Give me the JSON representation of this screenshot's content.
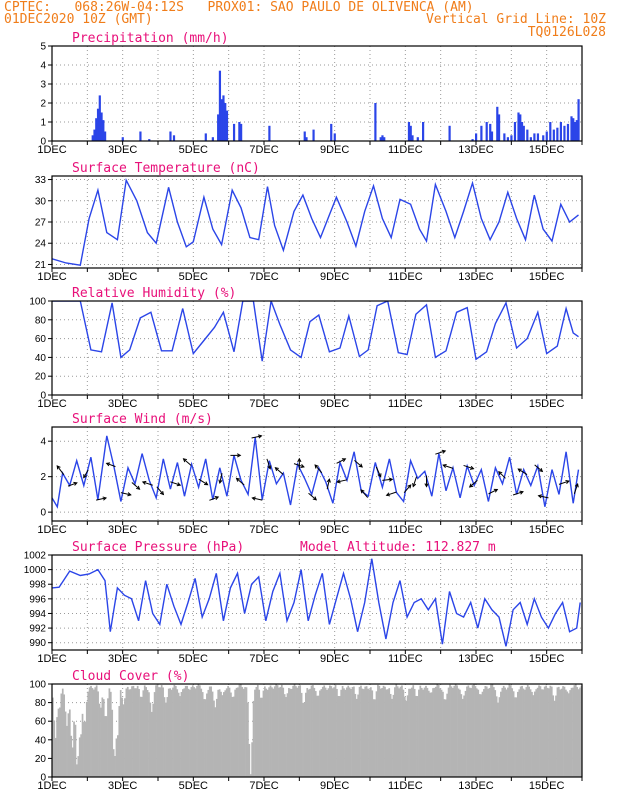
{
  "header": {
    "line1_left": "CPTEC:   068:26W-04:12S   PROX01: SAO PAULO DE OLIVENCA (AM)",
    "line2_left": "01DEC2020 10Z (GMT)",
    "line2_right": "Vertical Grid Line: 10Z",
    "line3_right": "TQ0126L028"
  },
  "colors": {
    "line": "#2b45e8",
    "bar": "#2b45e8",
    "cloud": "#b4b4b4",
    "title": "#e8107a",
    "header": "#f07d1a",
    "grid": "#9a9a9a"
  },
  "x_tick_labels": [
    "1DEC",
    "3DEC",
    "5DEC",
    "7DEC",
    "9DEC",
    "11DEC",
    "13DEC",
    "15DEC"
  ],
  "chart_data": [
    {
      "type": "bar",
      "title": "Precipitation (mm/h)",
      "ylim": [
        0,
        5
      ],
      "yticks": [
        "0",
        "1",
        "2",
        "3",
        "4",
        "5"
      ],
      "x_days": [
        2.15,
        2.2,
        2.25,
        2.3,
        2.35,
        2.4,
        2.45,
        2.5,
        3.0,
        3.5,
        3.75,
        4.35,
        4.45,
        5.35,
        5.55,
        5.7,
        5.75,
        5.8,
        5.85,
        5.9,
        5.95,
        6.15,
        6.3,
        6.35,
        7.15,
        8.15,
        8.2,
        8.4,
        8.9,
        9.0,
        10.15,
        10.3,
        10.35,
        10.4,
        11.1,
        11.15,
        11.2,
        11.35,
        11.5,
        12.25,
        12.9,
        13.0,
        13.15,
        13.3,
        13.4,
        13.45,
        13.6,
        13.65,
        13.8,
        13.9,
        14.0,
        14.1,
        14.2,
        14.25,
        14.3,
        14.35,
        14.45,
        14.55,
        14.65,
        14.75,
        14.9,
        15.0,
        15.1,
        15.2,
        15.3,
        15.4,
        15.5,
        15.6,
        15.7,
        15.75,
        15.8,
        15.85,
        15.9
      ],
      "values": [
        0.3,
        0.6,
        1.2,
        1.7,
        2.4,
        1.5,
        1.1,
        0.5,
        0.2,
        0.5,
        0.1,
        0.5,
        0.3,
        0.4,
        0.2,
        1.4,
        3.7,
        2.2,
        2.4,
        2.0,
        1.6,
        0.9,
        1.0,
        0.9,
        0.8,
        0.5,
        0.2,
        0.6,
        0.9,
        0.4,
        2.0,
        0.2,
        0.3,
        0.2,
        1.0,
        0.8,
        0.3,
        0.2,
        1.0,
        0.8,
        0.1,
        0.4,
        0.8,
        1.0,
        0.9,
        0.5,
        1.8,
        1.4,
        0.4,
        0.2,
        0.3,
        1.0,
        1.5,
        1.4,
        1.0,
        0.8,
        0.6,
        0.2,
        0.4,
        0.4,
        0.3,
        0.5,
        1.0,
        0.6,
        0.7,
        1.0,
        0.8,
        0.9,
        1.3,
        1.2,
        1.0,
        1.1,
        2.2
      ]
    },
    {
      "type": "line",
      "title": "Surface Temperature (nC)",
      "ylim": [
        20.5,
        33.5
      ],
      "yticks": [
        "21",
        "24",
        "27",
        "30",
        "33"
      ],
      "x_days": [
        1.0,
        1.4,
        1.8,
        2.05,
        2.3,
        2.55,
        2.85,
        3.1,
        3.4,
        3.7,
        3.95,
        4.3,
        4.55,
        4.8,
        5.0,
        5.3,
        5.55,
        5.8,
        6.1,
        6.35,
        6.6,
        6.85,
        7.1,
        7.3,
        7.55,
        7.85,
        8.1,
        8.35,
        8.6,
        8.85,
        9.05,
        9.35,
        9.6,
        9.85,
        10.1,
        10.35,
        10.6,
        10.85,
        11.15,
        11.4,
        11.6,
        11.85,
        12.15,
        12.4,
        12.65,
        12.9,
        13.15,
        13.4,
        13.65,
        13.9,
        14.15,
        14.4,
        14.65,
        14.9,
        15.15,
        15.4,
        15.65,
        15.9
      ],
      "values": [
        21.8,
        21.2,
        20.9,
        27.5,
        31.5,
        25.5,
        24.5,
        32.9,
        30.0,
        25.5,
        24.0,
        31.9,
        27.0,
        23.5,
        24.2,
        30.5,
        26.0,
        23.8,
        31.5,
        29.0,
        24.8,
        24.5,
        32.0,
        26.5,
        23.0,
        28.5,
        30.8,
        27.5,
        24.8,
        28.0,
        30.5,
        27.0,
        23.6,
        28.5,
        32.1,
        27.5,
        24.8,
        30.2,
        29.5,
        26.0,
        24.3,
        32.3,
        28.5,
        24.8,
        28.5,
        32.5,
        27.5,
        24.5,
        27.0,
        31.2,
        27.5,
        24.5,
        30.8,
        26.0,
        24.3,
        29.5,
        27.0,
        28.0
      ]
    },
    {
      "type": "line",
      "title": "Relative Humidity (%)",
      "ylim": [
        0,
        100
      ],
      "yticks": [
        "0",
        "20",
        "40",
        "60",
        "80",
        "100"
      ],
      "x_days": [
        1.0,
        1.4,
        1.8,
        2.1,
        2.4,
        2.7,
        2.95,
        3.2,
        3.5,
        3.8,
        4.1,
        4.4,
        4.7,
        5.0,
        5.3,
        5.6,
        5.85,
        6.15,
        6.4,
        6.7,
        6.95,
        7.2,
        7.45,
        7.75,
        8.05,
        8.3,
        8.55,
        8.85,
        9.15,
        9.4,
        9.7,
        9.95,
        10.2,
        10.5,
        10.8,
        11.05,
        11.3,
        11.6,
        11.85,
        12.15,
        12.45,
        12.75,
        13.0,
        13.3,
        13.55,
        13.85,
        14.15,
        14.45,
        14.75,
        15.0,
        15.3,
        15.55,
        15.75,
        15.9
      ],
      "values": [
        100,
        100,
        100,
        48,
        46,
        98,
        40,
        48,
        82,
        88,
        47,
        47,
        92,
        44,
        58,
        72,
        88,
        46,
        100,
        100,
        36,
        100,
        75,
        48,
        40,
        78,
        85,
        46,
        50,
        84,
        41,
        48,
        95,
        100,
        45,
        43,
        86,
        96,
        40,
        47,
        88,
        93,
        38,
        46,
        76,
        98,
        50,
        60,
        88,
        44,
        52,
        92,
        66,
        62
      ]
    },
    {
      "type": "line",
      "title": "Surface Wind (m/s)",
      "ylim": [
        -0.5,
        4.8
      ],
      "yticks": [
        "0",
        "2",
        "4"
      ],
      "x_days": [
        1.0,
        1.15,
        1.3,
        1.5,
        1.7,
        1.9,
        2.1,
        2.3,
        2.55,
        2.75,
        2.95,
        3.15,
        3.35,
        3.55,
        3.75,
        3.95,
        4.15,
        4.35,
        4.55,
        4.75,
        4.95,
        5.15,
        5.35,
        5.55,
        5.75,
        5.95,
        6.15,
        6.35,
        6.55,
        6.75,
        6.95,
        7.15,
        7.35,
        7.55,
        7.75,
        7.95,
        8.15,
        8.35,
        8.55,
        8.75,
        8.95,
        9.15,
        9.35,
        9.55,
        9.75,
        9.95,
        10.15,
        10.35,
        10.55,
        10.75,
        10.95,
        11.15,
        11.35,
        11.55,
        11.75,
        11.95,
        12.15,
        12.35,
        12.55,
        12.75,
        12.95,
        13.15,
        13.35,
        13.55,
        13.75,
        13.95,
        14.15,
        14.35,
        14.55,
        14.75,
        14.95,
        15.15,
        15.35,
        15.55,
        15.75,
        15.9
      ],
      "values": [
        0.8,
        0.3,
        2.2,
        1.5,
        2.9,
        1.5,
        3.1,
        0.7,
        4.3,
        2.6,
        0.6,
        2.5,
        1.6,
        3.3,
        1.8,
        0.8,
        3.0,
        1.3,
        2.8,
        0.9,
        2.7,
        1.4,
        3.0,
        0.7,
        2.5,
        0.9,
        3.2,
        1.8,
        1.0,
        4.2,
        0.7,
        2.9,
        1.6,
        2.2,
        0.4,
        2.7,
        1.9,
        1.0,
        2.5,
        1.7,
        0.5,
        2.8,
        1.8,
        3.4,
        1.2,
        0.9,
        2.8,
        1.4,
        3.0,
        1.1,
        0.6,
        2.9,
        1.9,
        2.3,
        0.9,
        3.3,
        1.2,
        2.5,
        0.8,
        2.6,
        1.5,
        2.4,
        0.6,
        2.5,
        1.6,
        3.1,
        1.0,
        2.4,
        1.5,
        2.6,
        0.3,
        2.4,
        1.0,
        3.4,
        0.5,
        2.4
      ],
      "arrows": [
        {
          "day": 1.3,
          "u": -0.6,
          "v": 0.8
        },
        {
          "day": 1.5,
          "u": 0.8,
          "v": 0.3
        },
        {
          "day": 2.0,
          "u": -0.4,
          "v": -0.7
        },
        {
          "day": 2.3,
          "u": 0.9,
          "v": 0.2
        },
        {
          "day": 2.75,
          "u": -0.8,
          "v": 0.3
        },
        {
          "day": 3.0,
          "u": 0.9,
          "v": -0.2
        },
        {
          "day": 3.3,
          "u": 0.7,
          "v": -0.6
        },
        {
          "day": 3.8,
          "u": -0.9,
          "v": 0.3
        },
        {
          "day": 4.0,
          "u": 0.6,
          "v": -0.7
        },
        {
          "day": 4.4,
          "u": 0.9,
          "v": -0.3
        },
        {
          "day": 4.9,
          "u": -0.7,
          "v": 0.6
        },
        {
          "day": 5.2,
          "u": 0.8,
          "v": -0.5
        },
        {
          "day": 5.5,
          "u": 0.8,
          "v": 0.3
        },
        {
          "day": 5.8,
          "u": -0.2,
          "v": -0.9
        },
        {
          "day": 6.1,
          "u": 0.9,
          "v": 0.0
        },
        {
          "day": 6.4,
          "u": -0.7,
          "v": 0.6
        },
        {
          "day": 6.7,
          "u": 0.9,
          "v": 0.2
        },
        {
          "day": 6.9,
          "u": -0.9,
          "v": 0.2
        },
        {
          "day": 7.1,
          "u": 0.3,
          "v": -0.9
        },
        {
          "day": 7.5,
          "u": -0.7,
          "v": 0.6
        },
        {
          "day": 7.9,
          "u": 0.9,
          "v": -0.3
        },
        {
          "day": 8.0,
          "u": 0.0,
          "v": 1.0
        },
        {
          "day": 8.3,
          "u": 0.7,
          "v": -0.6
        },
        {
          "day": 8.6,
          "u": -0.6,
          "v": 0.7
        },
        {
          "day": 8.8,
          "u": 0.2,
          "v": 0.9
        },
        {
          "day": 9.1,
          "u": 0.8,
          "v": 0.4
        },
        {
          "day": 9.3,
          "u": -0.9,
          "v": -0.2
        },
        {
          "day": 9.6,
          "u": 0.7,
          "v": -0.6
        },
        {
          "day": 9.9,
          "u": -0.6,
          "v": 0.7
        },
        {
          "day": 10.2,
          "u": 0.4,
          "v": -0.9
        },
        {
          "day": 10.4,
          "u": 0.9,
          "v": 0.1
        },
        {
          "day": 10.7,
          "u": -0.9,
          "v": -0.3
        },
        {
          "day": 11.0,
          "u": 0.6,
          "v": 0.7
        },
        {
          "day": 11.3,
          "u": -0.3,
          "v": -0.9
        },
        {
          "day": 11.6,
          "u": 0.0,
          "v": -1.0
        },
        {
          "day": 11.9,
          "u": 0.9,
          "v": 0.3
        },
        {
          "day": 12.3,
          "u": -0.9,
          "v": 0.3
        },
        {
          "day": 12.7,
          "u": 0.9,
          "v": -0.3
        },
        {
          "day": 13.0,
          "u": -0.7,
          "v": -0.6
        },
        {
          "day": 13.4,
          "u": 0.8,
          "v": 0.4
        },
        {
          "day": 13.8,
          "u": -0.6,
          "v": 0.6
        },
        {
          "day": 14.1,
          "u": 0.9,
          "v": 0.3
        },
        {
          "day": 14.4,
          "u": -0.8,
          "v": 0.5
        },
        {
          "day": 14.7,
          "u": 0.7,
          "v": -0.6
        },
        {
          "day": 15.0,
          "u": -0.9,
          "v": 0.2
        },
        {
          "day": 15.4,
          "u": 0.9,
          "v": 0.3
        },
        {
          "day": 15.8,
          "u": 0.3,
          "v": 0.9
        }
      ]
    },
    {
      "type": "line",
      "title": "Surface Pressure (hPa)",
      "annotation": "Model Altitude: 112.827 m",
      "ylim": [
        989,
        1002
      ],
      "yticks": [
        "990",
        "992",
        "994",
        "996",
        "998",
        "1000",
        "1002"
      ],
      "x_days": [
        1.0,
        1.2,
        1.5,
        1.8,
        2.05,
        2.3,
        2.5,
        2.65,
        2.85,
        3.05,
        3.25,
        3.45,
        3.65,
        3.85,
        4.05,
        4.25,
        4.45,
        4.65,
        4.85,
        5.05,
        5.25,
        5.45,
        5.65,
        5.85,
        6.05,
        6.25,
        6.45,
        6.65,
        6.85,
        7.05,
        7.25,
        7.45,
        7.65,
        7.85,
        8.05,
        8.25,
        8.45,
        8.65,
        8.85,
        9.05,
        9.25,
        9.45,
        9.65,
        9.85,
        10.05,
        10.25,
        10.45,
        10.65,
        10.85,
        11.05,
        11.25,
        11.45,
        11.65,
        11.85,
        12.05,
        12.25,
        12.45,
        12.65,
        12.85,
        13.05,
        13.25,
        13.45,
        13.65,
        13.85,
        14.05,
        14.25,
        14.45,
        14.65,
        14.85,
        15.05,
        15.25,
        15.45,
        15.65,
        15.85,
        15.95
      ],
      "values": [
        997.5,
        997.6,
        999.8,
        999.2,
        999.4,
        1000.0,
        998.5,
        991.5,
        997.5,
        996.5,
        996.0,
        993.0,
        998.5,
        994.0,
        992.5,
        998.0,
        995.0,
        992.5,
        995.5,
        998.8,
        993.5,
        996.0,
        999.5,
        993.0,
        997.5,
        999.5,
        994.0,
        998.0,
        999.0,
        993.0,
        997.0,
        999.5,
        993.0,
        995.5,
        1000.0,
        993.0,
        996.5,
        999.5,
        992.5,
        996.0,
        999.5,
        996.0,
        991.5,
        995.5,
        1001.5,
        995.5,
        990.5,
        995.5,
        998.5,
        993.5,
        995.5,
        996.0,
        994.5,
        996.0,
        989.8,
        997.0,
        994.0,
        993.5,
        995.5,
        992.0,
        996.0,
        994.5,
        993.5,
        989.5,
        994.5,
        995.5,
        992.5,
        996.0,
        993.5,
        992.0,
        994.0,
        995.5,
        991.5,
        992.0,
        995.5
      ]
    },
    {
      "type": "bar",
      "title": "Cloud Cover (%)",
      "ylim": [
        0,
        100
      ],
      "yticks": [
        "0",
        "20",
        "40",
        "60",
        "80",
        "100"
      ],
      "base_value": 97,
      "dips": [
        {
          "day": 1.08,
          "v": 40
        },
        {
          "day": 1.18,
          "v": 72
        },
        {
          "day": 1.4,
          "v": 55
        },
        {
          "day": 1.55,
          "v": 30
        },
        {
          "day": 1.7,
          "v": 2
        },
        {
          "day": 1.78,
          "v": 40
        },
        {
          "day": 1.9,
          "v": 55
        },
        {
          "day": 2.35,
          "v": 74
        },
        {
          "day": 2.5,
          "v": 62
        },
        {
          "day": 2.75,
          "v": 10
        },
        {
          "day": 2.82,
          "v": 40
        },
        {
          "day": 3.0,
          "v": 78
        },
        {
          "day": 3.5,
          "v": 85
        },
        {
          "day": 3.8,
          "v": 70
        },
        {
          "day": 4.2,
          "v": 80
        },
        {
          "day": 4.6,
          "v": 87
        },
        {
          "day": 5.3,
          "v": 82
        },
        {
          "day": 5.6,
          "v": 75
        },
        {
          "day": 5.8,
          "v": 88
        },
        {
          "day": 6.1,
          "v": 85
        },
        {
          "day": 6.6,
          "v": 3
        },
        {
          "day": 6.9,
          "v": 84
        },
        {
          "day": 7.6,
          "v": 86
        },
        {
          "day": 8.1,
          "v": 78
        },
        {
          "day": 8.5,
          "v": 86
        },
        {
          "day": 9.1,
          "v": 86
        },
        {
          "day": 9.6,
          "v": 84
        },
        {
          "day": 10.1,
          "v": 82
        },
        {
          "day": 10.6,
          "v": 84
        },
        {
          "day": 11.0,
          "v": 82
        },
        {
          "day": 11.3,
          "v": 86
        },
        {
          "day": 11.7,
          "v": 90
        },
        {
          "day": 12.1,
          "v": 82
        },
        {
          "day": 12.6,
          "v": 84
        },
        {
          "day": 13.1,
          "v": 88
        },
        {
          "day": 13.6,
          "v": 80
        },
        {
          "day": 14.1,
          "v": 84
        },
        {
          "day": 14.6,
          "v": 88
        },
        {
          "day": 15.2,
          "v": 82
        },
        {
          "day": 15.6,
          "v": 90
        }
      ]
    }
  ]
}
